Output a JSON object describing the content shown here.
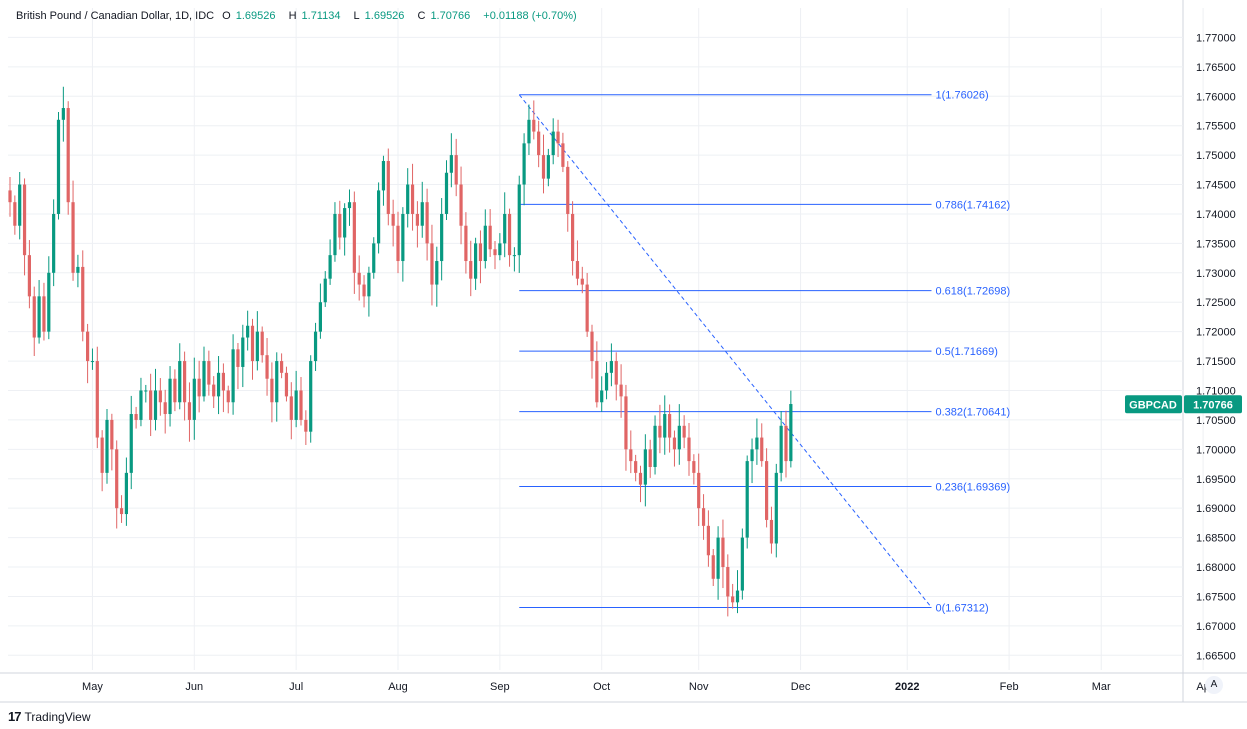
{
  "legend": {
    "title": "British Pound / Canadian Dollar, 1D, IDC",
    "open_label": "O",
    "open": "1.69526",
    "high_label": "H",
    "high": "1.71134",
    "low_label": "L",
    "low": "1.69526",
    "close_label": "C",
    "close": "1.70766",
    "change": "+0.01188 (+0.70%)"
  },
  "branding": "TradingView",
  "auto_scale_label": "A",
  "colors": {
    "up": "#089981",
    "down": "#e06565",
    "fib_line": "#2962ff",
    "fib_text": "#2962ff",
    "grid": "#eef0f4",
    "price_tag": "#089981"
  },
  "chart_data": {
    "type": "candlestick",
    "symbol_tag": "GBPCAD",
    "last_price": 1.70766,
    "last_price_label": "1.70766",
    "ylim": [
      1.6625,
      1.775
    ],
    "y_ticks": [
      "1.77000",
      "1.76500",
      "1.76000",
      "1.75500",
      "1.75000",
      "1.74500",
      "1.74000",
      "1.73500",
      "1.73000",
      "1.72500",
      "1.72000",
      "1.71500",
      "1.71000",
      "1.70500",
      "1.70000",
      "1.69500",
      "1.69000",
      "1.68500",
      "1.68000",
      "1.67500",
      "1.67000",
      "1.66500"
    ],
    "x_ticks": [
      {
        "label": "May",
        "bar": 17
      },
      {
        "label": "Jun",
        "bar": 38
      },
      {
        "label": "Jul",
        "bar": 59
      },
      {
        "label": "Aug",
        "bar": 80
      },
      {
        "label": "Sep",
        "bar": 101
      },
      {
        "label": "Oct",
        "bar": 122
      },
      {
        "label": "Nov",
        "bar": 142
      },
      {
        "label": "Dec",
        "bar": 163
      },
      {
        "label": "2022",
        "bar": 185
      },
      {
        "label": "Feb",
        "bar": 206
      },
      {
        "label": "Mar",
        "bar": 225
      },
      {
        "label": "Ap",
        "bar": 246
      }
    ],
    "fibonacci": {
      "start_bar": 105,
      "end_bar": 190,
      "levels": [
        {
          "label": "1(1.76026)",
          "value": 1.76026
        },
        {
          "label": "0.786(1.74162)",
          "value": 1.74162
        },
        {
          "label": "0.618(1.72698)",
          "value": 1.72698
        },
        {
          "label": "0.5(1.71669)",
          "value": 1.71669
        },
        {
          "label": "0.382(1.70641)",
          "value": 1.70641
        },
        {
          "label": "0.236(1.69369)",
          "value": 1.69369
        },
        {
          "label": "0(1.67312)",
          "value": 1.67312
        }
      ],
      "trend_line": {
        "from_bar": 105,
        "from_value": 1.76026,
        "to_bar": 190,
        "to_value": 1.67312
      }
    },
    "closes": [
      1.742,
      1.738,
      1.745,
      1.733,
      1.726,
      1.719,
      1.726,
      1.72,
      1.73,
      1.74,
      1.756,
      1.758,
      1.742,
      1.73,
      1.731,
      1.72,
      1.715,
      1.715,
      1.702,
      1.696,
      1.705,
      1.7,
      1.69,
      1.689,
      1.696,
      1.706,
      1.705,
      1.71,
      1.71,
      1.705,
      1.71,
      1.708,
      1.706,
      1.712,
      1.708,
      1.715,
      1.708,
      1.705,
      1.712,
      1.709,
      1.715,
      1.711,
      1.709,
      1.713,
      1.71,
      1.708,
      1.717,
      1.714,
      1.719,
      1.721,
      1.715,
      1.72,
      1.716,
      1.712,
      1.708,
      1.715,
      1.713,
      1.709,
      1.705,
      1.71,
      1.705,
      1.703,
      1.715,
      1.72,
      1.725,
      1.729,
      1.733,
      1.74,
      1.736,
      1.741,
      1.742,
      1.73,
      1.728,
      1.726,
      1.73,
      1.735,
      1.744,
      1.749,
      1.74,
      1.738,
      1.732,
      1.74,
      1.745,
      1.74,
      1.738,
      1.742,
      1.735,
      1.728,
      1.732,
      1.74,
      1.747,
      1.75,
      1.745,
      1.738,
      1.732,
      1.729,
      1.735,
      1.732,
      1.738,
      1.734,
      1.733,
      1.735,
      1.74,
      1.733,
      1.733,
      1.745,
      1.752,
      1.756,
      1.754,
      1.75,
      1.746,
      1.75,
      1.754,
      1.752,
      1.748,
      1.74,
      1.732,
      1.729,
      1.728,
      1.72,
      1.715,
      1.708,
      1.71,
      1.713,
      1.715,
      1.711,
      1.709,
      1.7,
      1.698,
      1.696,
      1.694,
      1.7,
      1.697,
      1.704,
      1.702,
      1.706,
      1.702,
      1.7,
      1.704,
      1.702,
      1.698,
      1.696,
      1.69,
      1.687,
      1.682,
      1.678,
      1.685,
      1.68,
      1.675,
      1.674,
      1.676,
      1.685,
      1.698,
      1.7,
      1.702,
      1.698,
      1.688,
      1.684,
      1.696,
      1.704,
      1.698,
      1.7077
    ]
  }
}
